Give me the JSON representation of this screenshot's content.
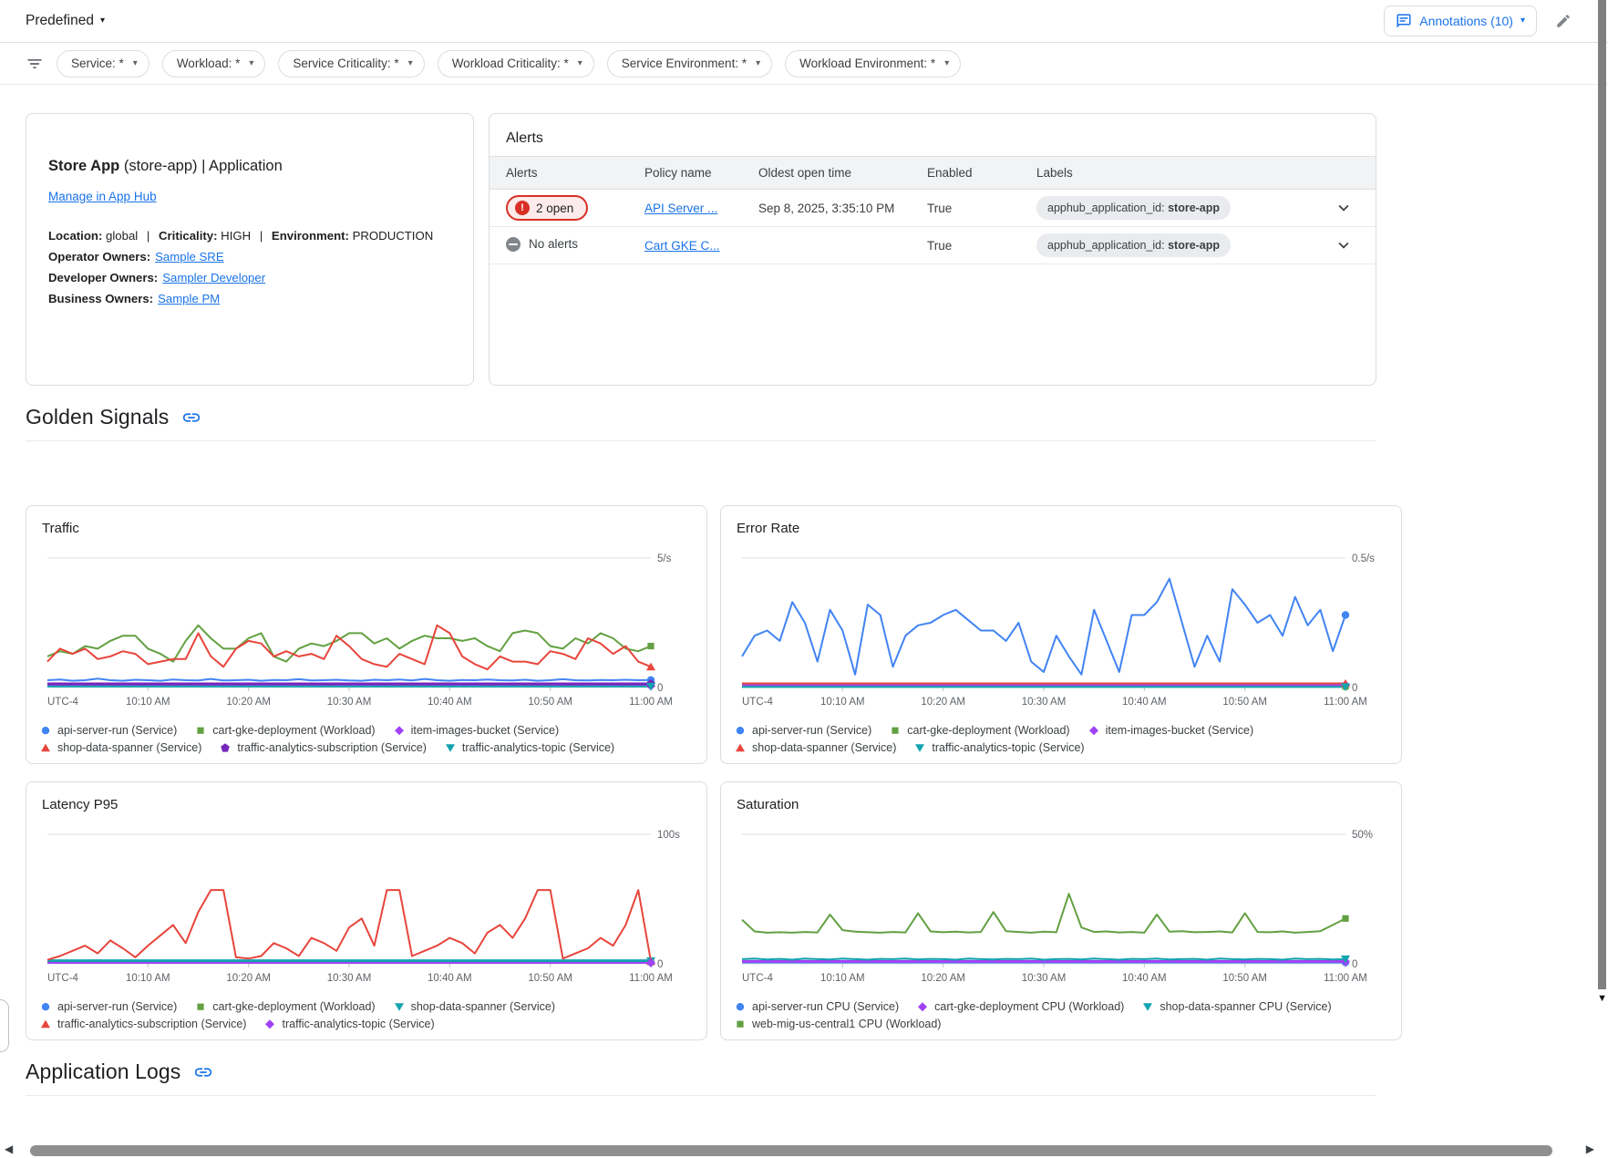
{
  "colors": {
    "link": "#1a73e8",
    "alert_open": "#d93025",
    "alert_none": "#80868b"
  },
  "topbar": {
    "view_selector": "Predefined",
    "annotations_label": "Annotations (10)"
  },
  "filterbar": {
    "chips": [
      "Service: *",
      "Workload: *",
      "Service Criticality: *",
      "Workload Criticality: *",
      "Service Environment: *",
      "Workload Environment: *"
    ]
  },
  "app_card": {
    "title_bold": "Store App",
    "title_rest": " (store-app) | Application",
    "manage_link": "Manage in App Hub",
    "meta_sep": "|",
    "meta": [
      {
        "k": "Location:",
        "v": "global"
      },
      {
        "k": "Criticality:",
        "v": "HIGH"
      },
      {
        "k": "Environment:",
        "v": "PRODUCTION"
      }
    ],
    "owners": [
      {
        "k": "Operator Owners:",
        "link": "Sample SRE"
      },
      {
        "k": "Developer Owners:",
        "link": "Sampler Developer"
      },
      {
        "k": "Business Owners:",
        "link": "Sample PM"
      }
    ]
  },
  "alerts": {
    "title": "Alerts",
    "columns": [
      "Alerts",
      "Policy name",
      "Oldest open time",
      "Enabled",
      "Labels"
    ],
    "rows": [
      {
        "status_text": "2 open",
        "status_kind": "open",
        "policy": "API Server ...",
        "oldest": "Sep 8, 2025, 3:35:10 PM",
        "enabled": "True",
        "label_key": "apphub_application_id:",
        "label_value": "store-app"
      },
      {
        "status_text": "No alerts",
        "status_kind": "none",
        "policy": "Cart GKE C...",
        "oldest": "",
        "enabled": "True",
        "label_key": "apphub_application_id:",
        "label_value": "store-app"
      }
    ]
  },
  "sections": {
    "golden_signals": "Golden Signals",
    "application_logs": "Application Logs"
  },
  "chart_data": [
    {
      "type": "line",
      "title": "Traffic",
      "ymax": 5,
      "ymax_label": "5/s",
      "ymin_label": "0",
      "x_left_label": "UTC-4",
      "grid": "top-line-only",
      "legend_position": "bottom",
      "legend_break": 3,
      "x_ticks": [
        "10:10 AM",
        "10:20 AM",
        "10:30 AM",
        "10:40 AM",
        "10:50 AM",
        "11:00 AM"
      ],
      "series": [
        {
          "legend": "api-server-run (Service)",
          "color": "#4184f3",
          "marker": "circle",
          "width": 2,
          "values": [
            0.28,
            0.31,
            0.26,
            0.28,
            0.34,
            0.28,
            0.26,
            0.3,
            0.28,
            0.26,
            0.31,
            0.28,
            0.27,
            0.33,
            0.27,
            0.28,
            0.3,
            0.26,
            0.29,
            0.28,
            0.32,
            0.27,
            0.28,
            0.3,
            0.27,
            0.26,
            0.3,
            0.28,
            0.31,
            0.27,
            0.33,
            0.28,
            0.26,
            0.29,
            0.28,
            0.31,
            0.28,
            0.27,
            0.3,
            0.26,
            0.28,
            0.32,
            0.28,
            0.27,
            0.29,
            0.28,
            0.3,
            0.28,
            0.29
          ]
        },
        {
          "legend": "cart-gke-deployment (Workload)",
          "color": "#63a042",
          "marker": "square",
          "width": 2,
          "values": [
            1.2,
            1.4,
            1.3,
            1.6,
            1.5,
            1.8,
            2.0,
            2.0,
            1.5,
            1.3,
            1.0,
            1.8,
            2.4,
            1.9,
            1.5,
            1.5,
            1.9,
            2.1,
            1.2,
            1.0,
            1.5,
            1.7,
            1.6,
            1.8,
            2.1,
            2.1,
            1.7,
            1.9,
            1.5,
            1.8,
            2.0,
            1.9,
            1.9,
            1.8,
            1.9,
            1.6,
            1.4,
            2.1,
            2.2,
            2.1,
            1.6,
            1.5,
            1.9,
            1.7,
            2.1,
            1.9,
            1.5,
            1.4,
            1.6
          ]
        },
        {
          "legend": "item-images-bucket (Service)",
          "color": "#a142f4",
          "marker": "diamond",
          "width": 2,
          "values": 0.06
        },
        {
          "legend": "shop-data-spanner (Service)",
          "color": "#e8453c",
          "marker": "tri-up",
          "width": 2,
          "values": [
            1.0,
            1.5,
            1.3,
            1.5,
            1.1,
            1.2,
            1.4,
            1.3,
            0.9,
            1.0,
            1.1,
            1.1,
            2.1,
            1.2,
            0.8,
            1.5,
            1.8,
            1.7,
            1.2,
            1.4,
            1.2,
            1.3,
            1.1,
            2.0,
            1.6,
            1.1,
            0.9,
            0.8,
            1.3,
            1.1,
            0.9,
            2.4,
            2.1,
            1.2,
            0.9,
            0.7,
            1.2,
            1.0,
            1.0,
            0.9,
            1.4,
            1.3,
            1.1,
            1.9,
            1.7,
            1.3,
            1.6,
            1.0,
            0.8
          ]
        },
        {
          "legend": "traffic-analytics-subscription (Service)",
          "color": "#7627bb",
          "marker": "pentagon",
          "width": 3,
          "values": 0.14
        },
        {
          "legend": "traffic-analytics-topic (Service)",
          "color": "#12a4af",
          "marker": "tri-down",
          "width": 2,
          "values": 0.04
        }
      ]
    },
    {
      "type": "line",
      "title": "Error Rate",
      "ymax": 0.5,
      "ymax_label": "0.5/s",
      "ymin_label": "0",
      "x_left_label": "UTC-4",
      "grid": "top-line-only",
      "legend_position": "bottom",
      "legend_break": 3,
      "x_ticks": [
        "10:10 AM",
        "10:20 AM",
        "10:30 AM",
        "10:40 AM",
        "10:50 AM",
        "11:00 AM"
      ],
      "series": [
        {
          "legend": "api-server-run (Service)",
          "color": "#4184f3",
          "marker": "circle",
          "width": 2,
          "values": [
            0.12,
            0.2,
            0.22,
            0.18,
            0.33,
            0.25,
            0.1,
            0.3,
            0.22,
            0.05,
            0.32,
            0.28,
            0.08,
            0.2,
            0.24,
            0.25,
            0.28,
            0.3,
            0.26,
            0.22,
            0.22,
            0.18,
            0.25,
            0.1,
            0.06,
            0.2,
            0.12,
            0.05,
            0.3,
            0.18,
            0.06,
            0.28,
            0.28,
            0.33,
            0.42,
            0.25,
            0.08,
            0.2,
            0.1,
            0.38,
            0.32,
            0.25,
            0.28,
            0.2,
            0.35,
            0.24,
            0.3,
            0.14,
            0.28
          ]
        },
        {
          "legend": "cart-gke-deployment (Workload)",
          "color": "#63a042",
          "marker": "square",
          "width": 2,
          "values": 0.004
        },
        {
          "legend": "item-images-bucket (Service)",
          "color": "#a142f4",
          "marker": "diamond",
          "width": 2,
          "values": 0.01
        },
        {
          "legend": "shop-data-spanner (Service)",
          "color": "#e8453c",
          "marker": "tri-up",
          "width": 2,
          "values": 0.016
        },
        {
          "legend": "traffic-analytics-topic (Service)",
          "color": "#12a4af",
          "marker": "tri-down",
          "width": 2,
          "values": 0.002
        }
      ]
    },
    {
      "type": "line",
      "title": "Latency P95",
      "ymax": 100,
      "ymax_label": "100s",
      "ymin_label": "0",
      "x_left_label": "UTC-4",
      "grid": "top-line-only",
      "legend_position": "bottom",
      "legend_break": 3,
      "x_ticks": [
        "10:10 AM",
        "10:20 AM",
        "10:30 AM",
        "10:40 AM",
        "10:50 AM",
        "11:00 AM"
      ],
      "series": [
        {
          "legend": "api-server-run (Service)",
          "color": "#4184f3",
          "marker": "circle",
          "width": 2,
          "values": 1.2
        },
        {
          "legend": "cart-gke-deployment (Workload)",
          "color": "#63a042",
          "marker": "square",
          "width": 2,
          "values": 1.5
        },
        {
          "legend": "shop-data-spanner (Service)",
          "color": "#12a4af",
          "marker": "tri-down",
          "width": 3.5,
          "values": 2.2
        },
        {
          "legend": "traffic-analytics-subscription (Service)",
          "color": "#e8453c",
          "marker": "tri-up",
          "width": 2,
          "values": [
            3,
            6,
            10,
            14,
            8,
            18,
            12,
            5,
            14,
            22,
            30,
            16,
            40,
            57,
            57,
            5,
            4,
            6,
            16,
            12,
            6,
            20,
            16,
            10,
            28,
            35,
            14,
            57,
            57,
            6,
            10,
            14,
            20,
            16,
            8,
            24,
            30,
            20,
            35,
            57,
            57,
            4,
            8,
            12,
            20,
            14,
            30,
            57,
            2
          ]
        },
        {
          "legend": "traffic-analytics-topic (Service)",
          "color": "#a142f4",
          "marker": "diamond",
          "width": 2,
          "values": 0.7
        }
      ]
    },
    {
      "type": "line",
      "title": "Saturation",
      "ymax": 50,
      "ymax_label": "50%",
      "ymin_label": "0",
      "x_left_label": "UTC-4",
      "grid": "top-line-only",
      "legend_position": "bottom",
      "legend_break": 3,
      "x_ticks": [
        "10:10 AM",
        "10:20 AM",
        "10:30 AM",
        "10:40 AM",
        "10:50 AM",
        "11:00 AM"
      ],
      "series": [
        {
          "legend": "api-server-run CPU (Service)",
          "color": "#4184f3",
          "marker": "circle",
          "width": 2,
          "values": 0.5
        },
        {
          "legend": "cart-gke-deployment CPU (Workload)",
          "color": "#a142f4",
          "marker": "diamond",
          "width": 3,
          "values": 0.9
        },
        {
          "legend": "shop-data-spanner CPU (Service)",
          "color": "#12a4af",
          "marker": "tri-down",
          "width": 2,
          "values": [
            1.8,
            2.0,
            1.7,
            1.9,
            1.6,
            2.0,
            1.8,
            1.7,
            2.0,
            1.8,
            1.6,
            1.9,
            1.8,
            2.0,
            1.7,
            1.9,
            1.8,
            1.6,
            2.0,
            1.8,
            1.7,
            1.9,
            1.8,
            2.0,
            1.6,
            1.8,
            1.9,
            1.7,
            2.0,
            1.8,
            1.6,
            1.9,
            1.8,
            2.0,
            1.7,
            1.8,
            1.9,
            1.6,
            2.0,
            1.8,
            1.7,
            1.9,
            1.8,
            1.6,
            2.0,
            1.8,
            1.9,
            1.7,
            1.8
          ]
        },
        {
          "legend": "web-mig-us-central1 CPU (Workload)",
          "color": "#63a042",
          "marker": "square",
          "width": 2,
          "values": [
            17,
            12.5,
            12,
            12.2,
            12,
            12.3,
            12.1,
            19,
            13,
            12.4,
            12.2,
            12,
            12.3,
            12.1,
            19.5,
            12.5,
            12.2,
            12.4,
            12.1,
            12.3,
            20,
            12.6,
            12.3,
            12,
            12.4,
            12.2,
            27,
            14,
            12.3,
            12.5,
            12.1,
            12.3,
            12,
            19,
            12.4,
            12.6,
            12.2,
            12.3,
            12.5,
            12.1,
            19.5,
            12.3,
            12.2,
            12.5,
            12,
            12.3,
            12.6,
            15,
            17.5
          ]
        }
      ]
    }
  ]
}
